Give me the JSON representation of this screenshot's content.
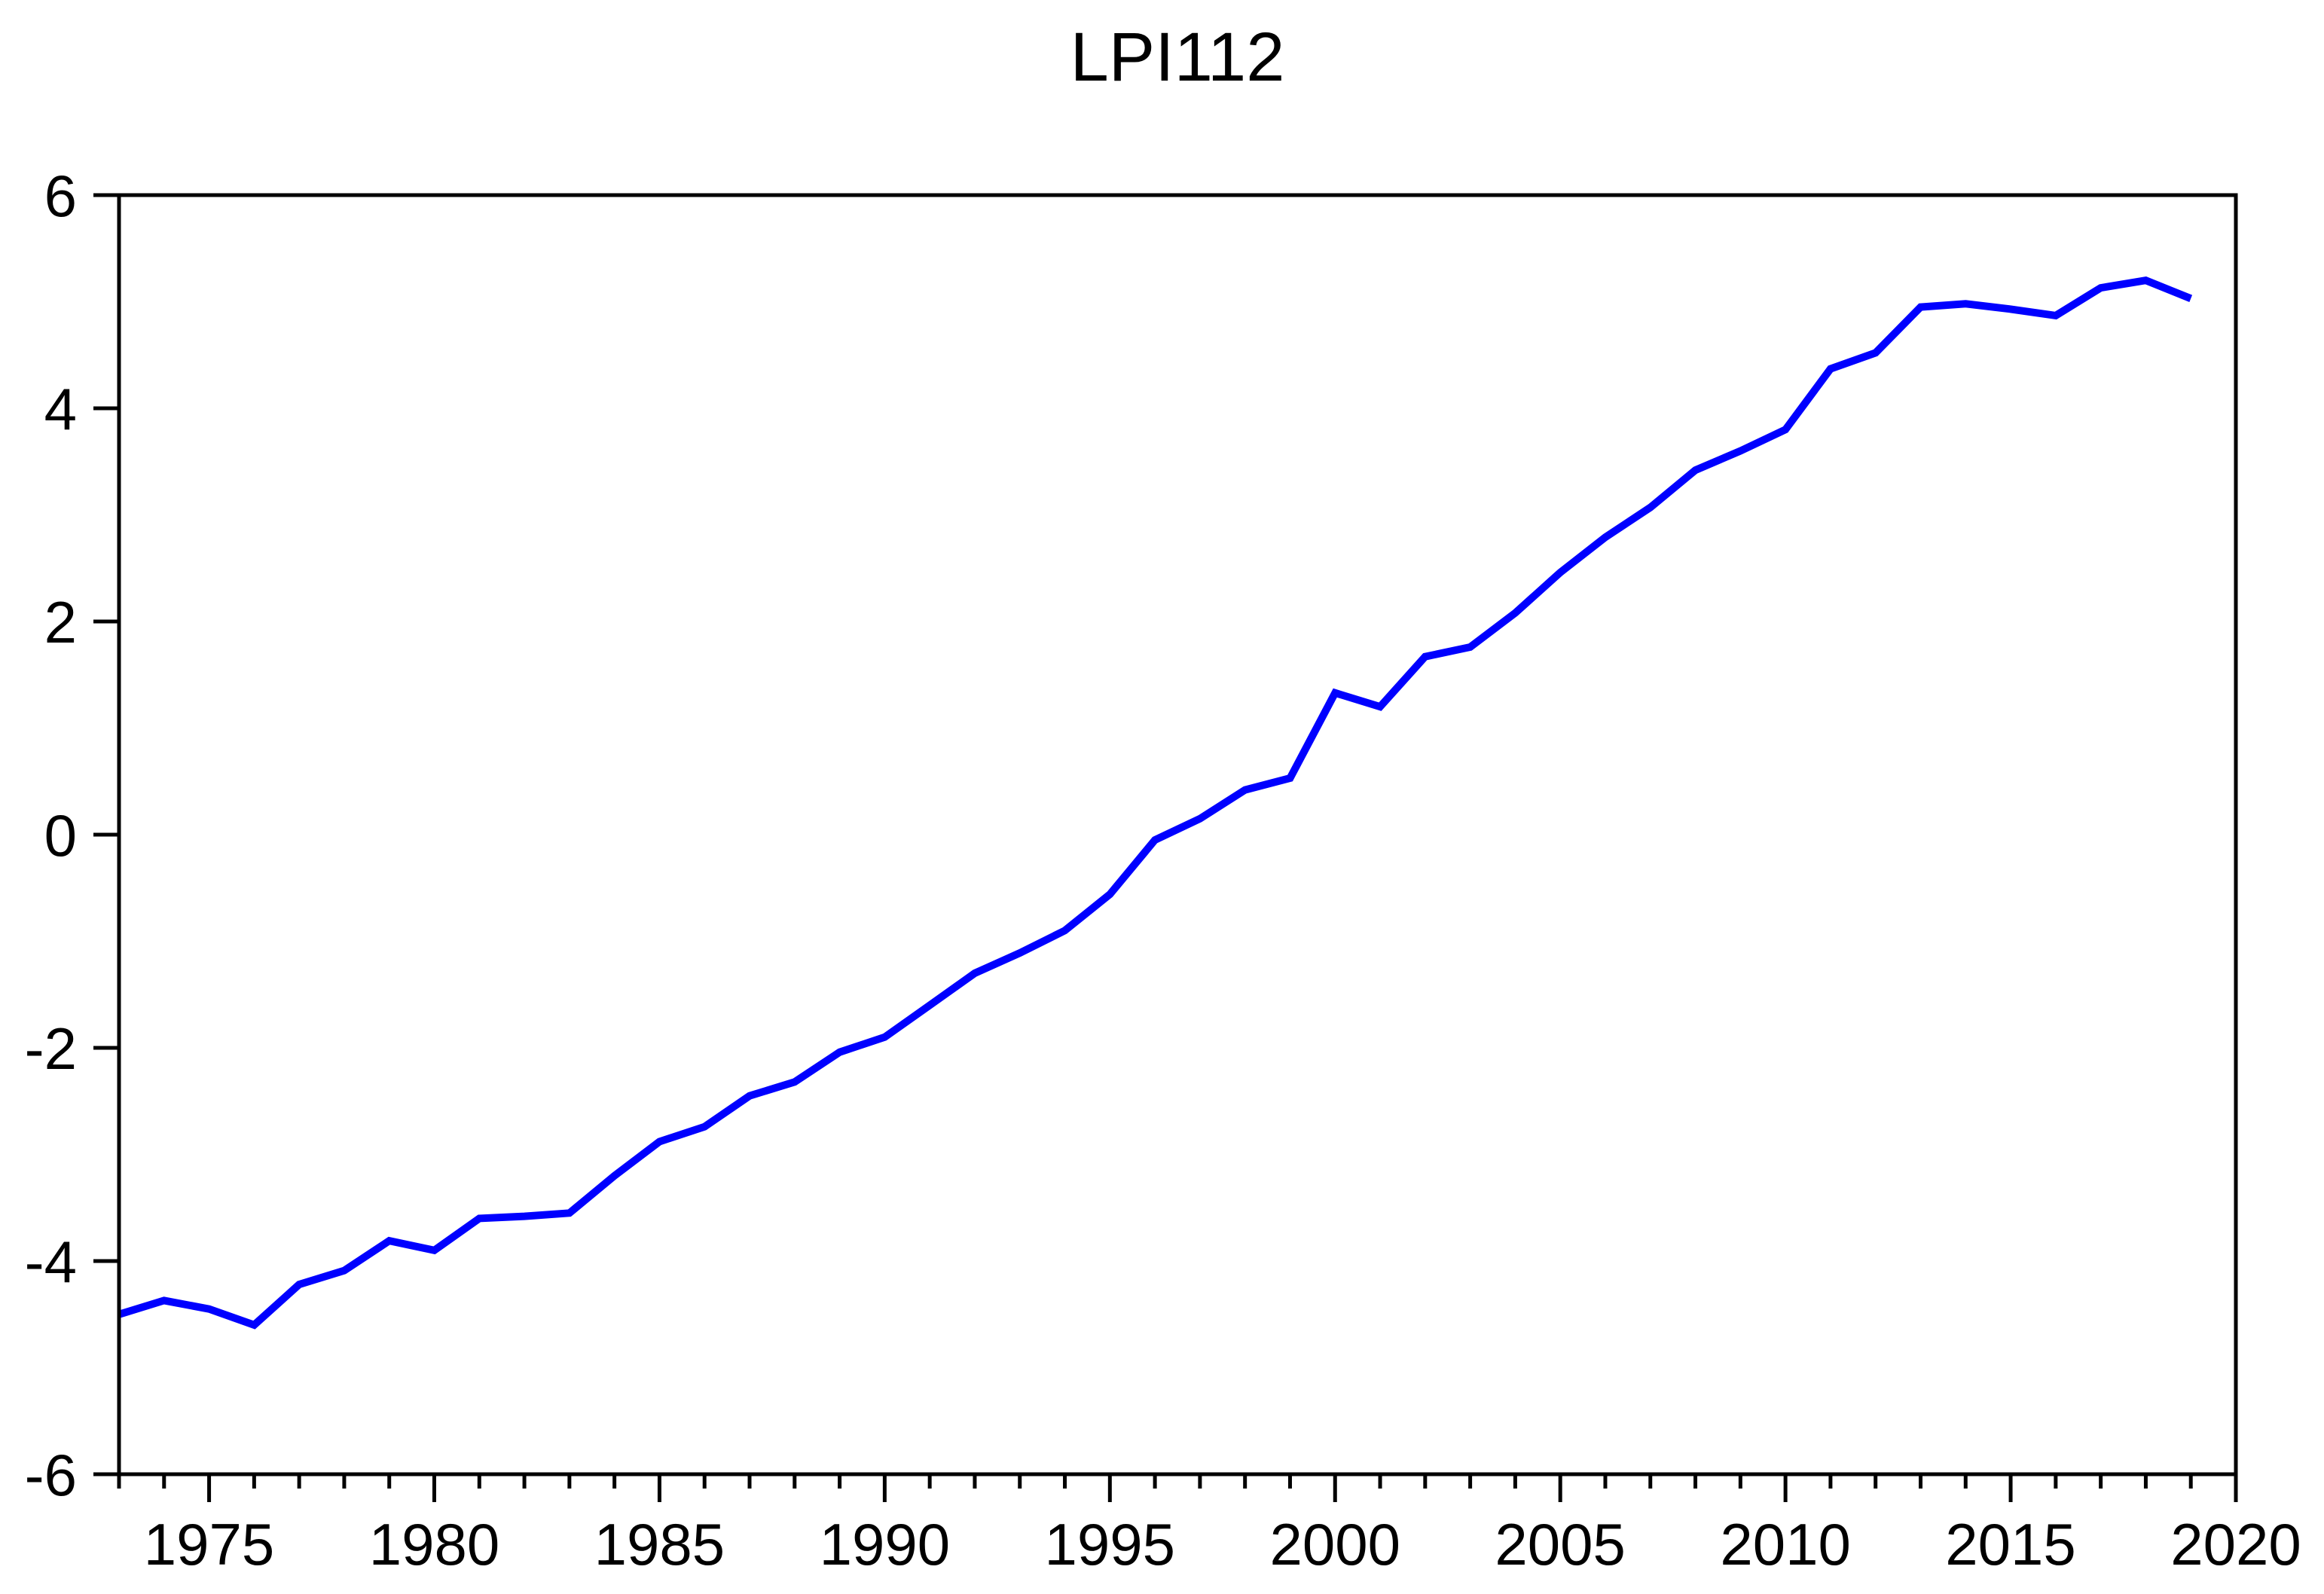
{
  "page": {
    "background_color": "#FFFFFF"
  },
  "chart_data": {
    "type": "line",
    "title": "LPI112",
    "xlabel": "",
    "ylabel": "",
    "xlim": [
      1973,
      2020
    ],
    "ylim": [
      -6,
      6
    ],
    "grid": false,
    "legend_position": "none",
    "frame": "box",
    "axis_color": "#000000",
    "tick_label_color": "#000000",
    "x_minor_tick_step": 1,
    "x_major_ticks": [
      1975,
      1980,
      1985,
      1990,
      1995,
      2000,
      2005,
      2010,
      2015,
      2020
    ],
    "x_major_tick_labels": [
      "1975",
      "1980",
      "1985",
      "1990",
      "1995",
      "2000",
      "2005",
      "2010",
      "2015",
      "2020"
    ],
    "y_ticks": [
      6,
      4,
      2,
      0,
      -2,
      -4,
      -6
    ],
    "y_tick_labels": [
      "6",
      "4",
      "2",
      "0",
      "-2",
      "-4",
      "-6"
    ],
    "series": [
      {
        "name": "LPI112",
        "color": "#0000FF",
        "x": [
          1973,
          1974,
          1975,
          1976,
          1977,
          1978,
          1979,
          1980,
          1981,
          1982,
          1983,
          1984,
          1985,
          1986,
          1987,
          1988,
          1989,
          1990,
          1991,
          1992,
          1993,
          1994,
          1995,
          1996,
          1997,
          1998,
          1999,
          2000,
          2001,
          2002,
          2003,
          2004,
          2005,
          2006,
          2007,
          2008,
          2009,
          2010,
          2011,
          2012,
          2013,
          2014,
          2015,
          2016,
          2017,
          2018,
          2019
        ],
        "values": [
          -4.5,
          -4.37,
          -4.45,
          -4.6,
          -4.22,
          -4.09,
          -3.81,
          -3.9,
          -3.6,
          -3.58,
          -3.55,
          -3.2,
          -2.88,
          -2.74,
          -2.45,
          -2.32,
          -2.04,
          -1.9,
          -1.6,
          -1.3,
          -1.11,
          -0.9,
          -0.56,
          -0.05,
          0.15,
          0.42,
          0.53,
          1.33,
          1.2,
          1.67,
          1.76,
          2.08,
          2.46,
          2.79,
          3.07,
          3.42,
          3.6,
          3.8,
          4.37,
          4.52,
          4.95,
          4.98,
          4.93,
          4.87,
          5.13,
          5.2,
          5.03
        ]
      }
    ]
  }
}
